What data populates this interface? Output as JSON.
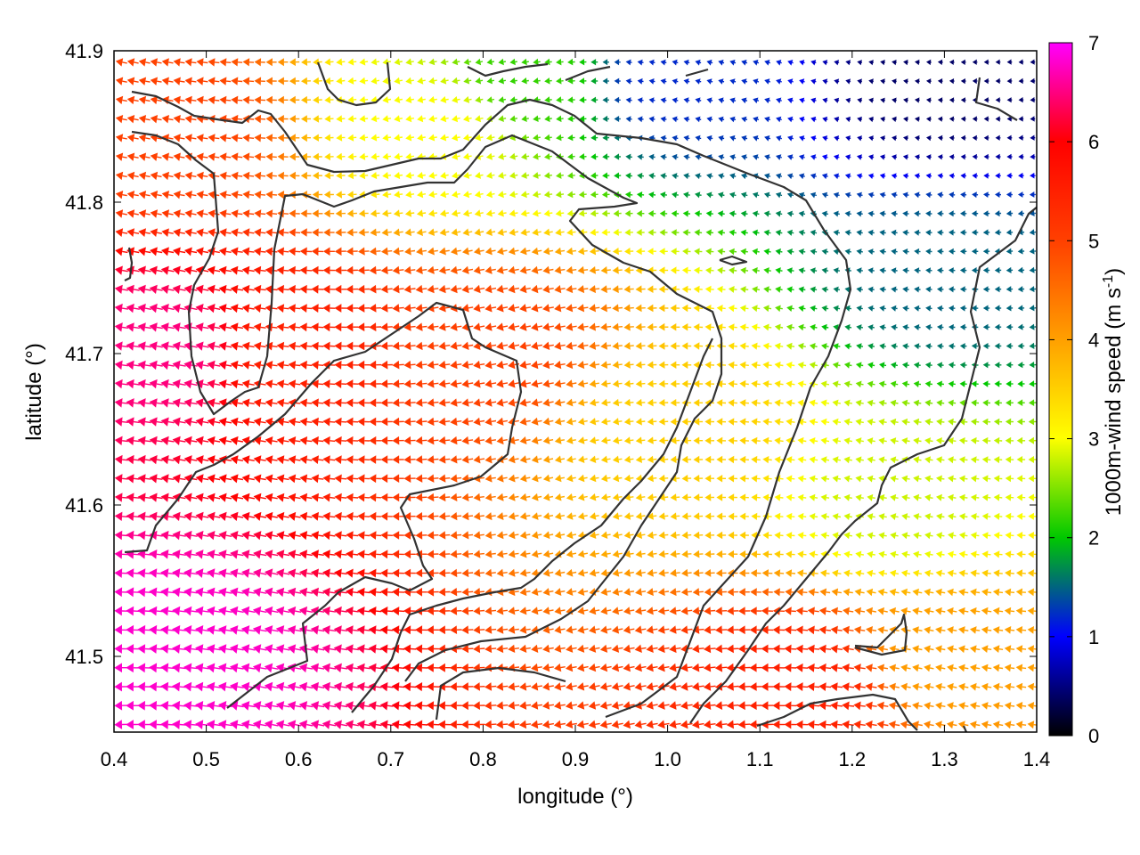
{
  "chart_data": {
    "type": "vector-field",
    "xlabel": "longitude (°)",
    "ylabel": "latitude (°)",
    "xlim": [
      0.4,
      1.4
    ],
    "ylim": [
      41.45,
      41.9
    ],
    "x_ticks": [
      0.4,
      0.5,
      0.6,
      0.7,
      0.8,
      0.9,
      1.0,
      1.1,
      1.2,
      1.3,
      1.4
    ],
    "x_tick_labels": [
      "0.4",
      "0.5",
      "0.6",
      "0.7",
      "0.8",
      "0.9",
      "1.0",
      "1.1",
      "1.2",
      "1.3",
      "1.4"
    ],
    "y_ticks": [
      41.5,
      41.6,
      41.7,
      41.8,
      41.9
    ],
    "y_tick_labels": [
      "41.5",
      "41.6",
      "41.7",
      "41.8",
      "41.9"
    ],
    "grid": false,
    "colorbar": {
      "label_main": "1000m-wind speed (m s",
      "label_sup": "-1",
      "label_end": ")",
      "range": [
        0,
        7
      ],
      "ticks": [
        0,
        1,
        2,
        3,
        4,
        5,
        6,
        7
      ],
      "tick_labels": [
        "0",
        "1",
        "2",
        "3",
        "4",
        "5",
        "6",
        "7"
      ],
      "colors": [
        "#000000",
        "#0000ff",
        "#00ff00",
        "#ffff00",
        "#ff8000",
        "#ff0000",
        "#ff00ff"
      ]
    },
    "wind_speed_field": {
      "description_of_values": "approximate wind speed (m s-1) at sample points",
      "points": [
        {
          "lon": 0.45,
          "lat": 41.5,
          "speed": 6.8
        },
        {
          "lon": 0.45,
          "lat": 41.7,
          "speed": 6.5
        },
        {
          "lon": 0.45,
          "lat": 41.85,
          "speed": 5.0
        },
        {
          "lon": 0.6,
          "lat": 41.7,
          "speed": 5.5
        },
        {
          "lon": 0.8,
          "lat": 41.7,
          "speed": 5.0
        },
        {
          "lon": 0.75,
          "lat": 41.85,
          "speed": 3.0
        },
        {
          "lon": 0.85,
          "lat": 41.88,
          "speed": 2.2
        },
        {
          "lon": 1.0,
          "lat": 41.88,
          "speed": 1.2
        },
        {
          "lon": 1.3,
          "lat": 41.88,
          "speed": 0.4
        },
        {
          "lon": 1.3,
          "lat": 41.75,
          "speed": 1.5
        },
        {
          "lon": 1.25,
          "lat": 41.6,
          "speed": 2.8
        },
        {
          "lon": 1.0,
          "lat": 41.65,
          "speed": 3.5
        },
        {
          "lon": 1.15,
          "lat": 41.48,
          "speed": 5.5
        },
        {
          "lon": 1.3,
          "lat": 41.5,
          "speed": 4.0
        }
      ]
    },
    "wind_direction": "predominantly westward (arrows pointing left)"
  }
}
